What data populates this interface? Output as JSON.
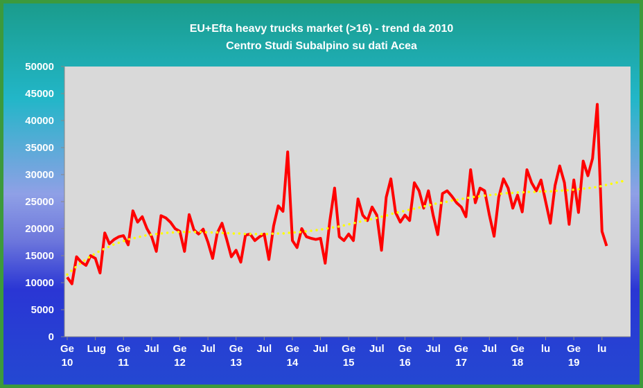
{
  "chart_data": {
    "type": "line",
    "title": "EU+Efta heavy trucks market (>16) - trend da 2010",
    "subtitle": "Centro Studi Subalpino su dati Acea",
    "categories": [
      "Ge 10",
      null,
      null,
      null,
      null,
      null,
      "Lug",
      null,
      null,
      null,
      null,
      null,
      "Ge 11",
      null,
      null,
      null,
      null,
      null,
      "Jul",
      null,
      null,
      null,
      null,
      null,
      "Ge 12",
      null,
      null,
      null,
      null,
      null,
      "Jul",
      null,
      null,
      null,
      null,
      null,
      "Ge 13",
      null,
      null,
      null,
      null,
      null,
      "Jul",
      null,
      null,
      null,
      null,
      null,
      "Ge 14",
      null,
      null,
      null,
      null,
      null,
      "Jul",
      null,
      null,
      null,
      null,
      null,
      "Ge 15",
      null,
      null,
      null,
      null,
      null,
      "Jul",
      null,
      null,
      null,
      null,
      null,
      "Ge 16",
      null,
      null,
      null,
      null,
      null,
      "Jul",
      null,
      null,
      null,
      null,
      null,
      "Ge 17",
      null,
      null,
      null,
      null,
      null,
      "Jul",
      null,
      null,
      null,
      null,
      null,
      "Ge 18",
      null,
      null,
      null,
      null,
      null,
      "lu",
      null,
      null,
      null,
      null,
      null,
      "Ge 19",
      null,
      null,
      null,
      null,
      null,
      "lu",
      null,
      null,
      null,
      null,
      null
    ],
    "series": [
      {
        "color": "#ff0000",
        "style": "solid",
        "values": [
          11000,
          9800,
          14800,
          13800,
          13200,
          15000,
          14500,
          11800,
          19200,
          17200,
          18000,
          18500,
          18700,
          17000,
          23300,
          21200,
          22200,
          20000,
          18500,
          15800,
          22400,
          22000,
          21200,
          20000,
          19500,
          15800,
          22600,
          19800,
          19000,
          19900,
          17500,
          14500,
          19200,
          21000,
          18000,
          14800,
          16000,
          13800,
          18800,
          19000,
          17800,
          18500,
          19000,
          14300,
          20500,
          24200,
          23200,
          34200,
          17800,
          16500,
          20000,
          18500,
          18200,
          18000,
          18200,
          13600,
          21500,
          27500,
          18500,
          17800,
          19000,
          17800,
          25500,
          22500,
          21500,
          24000,
          22500,
          16000,
          25800,
          29200,
          23000,
          21200,
          22500,
          21500,
          28500,
          27000,
          23800,
          27000,
          22500,
          18900,
          26500,
          27000,
          26000,
          24800,
          24000,
          22200,
          30900,
          24800,
          27500,
          27000,
          22500,
          18600,
          25800,
          29200,
          27500,
          23800,
          26200,
          23100,
          30900,
          28500,
          27000,
          29000,
          25000,
          21000,
          28000,
          31600,
          28500,
          20800,
          29000,
          23000,
          32500,
          29800,
          33000,
          43000,
          19500,
          16800,
          null,
          null,
          null,
          null
        ]
      },
      {
        "color": "#ffff00",
        "style": "dotted",
        "values": [
          11500,
          12300,
          13000,
          13700,
          14300,
          14900,
          15400,
          15900,
          16300,
          16700,
          17100,
          17400,
          17700,
          18000,
          18200,
          18400,
          18600,
          18800,
          18900,
          19000,
          19100,
          19200,
          19300,
          19300,
          19400,
          19400,
          19400,
          19400,
          19400,
          19400,
          19300,
          19300,
          19300,
          19200,
          19200,
          19100,
          19100,
          19100,
          19000,
          19000,
          19000,
          19000,
          19000,
          19000,
          19100,
          19100,
          19100,
          19200,
          19300,
          19300,
          19400,
          19500,
          19600,
          19700,
          19800,
          20000,
          20100,
          20300,
          20400,
          20600,
          20800,
          21000,
          21200,
          21400,
          21600,
          21800,
          22000,
          22200,
          22400,
          22700,
          22900,
          23100,
          23300,
          23500,
          23700,
          23900,
          24100,
          24300,
          24500,
          24700,
          24800,
          25000,
          25200,
          25300,
          25500,
          25600,
          25800,
          25900,
          26000,
          26100,
          26200,
          26300,
          26400,
          26500,
          26600,
          26600,
          26700,
          26700,
          26800,
          26800,
          26800,
          26900,
          26900,
          26900,
          27000,
          27000,
          27100,
          27100,
          27200,
          27300,
          27400,
          27500,
          27600,
          27700,
          27900,
          28100,
          28300,
          28500,
          28700,
          28900
        ]
      }
    ],
    "ylim": [
      0,
      50000
    ],
    "yticks": [
      0,
      5000,
      10000,
      15000,
      20000,
      25000,
      30000,
      35000,
      40000,
      45000,
      50000
    ],
    "plot_background": "#d9d9d9"
  }
}
